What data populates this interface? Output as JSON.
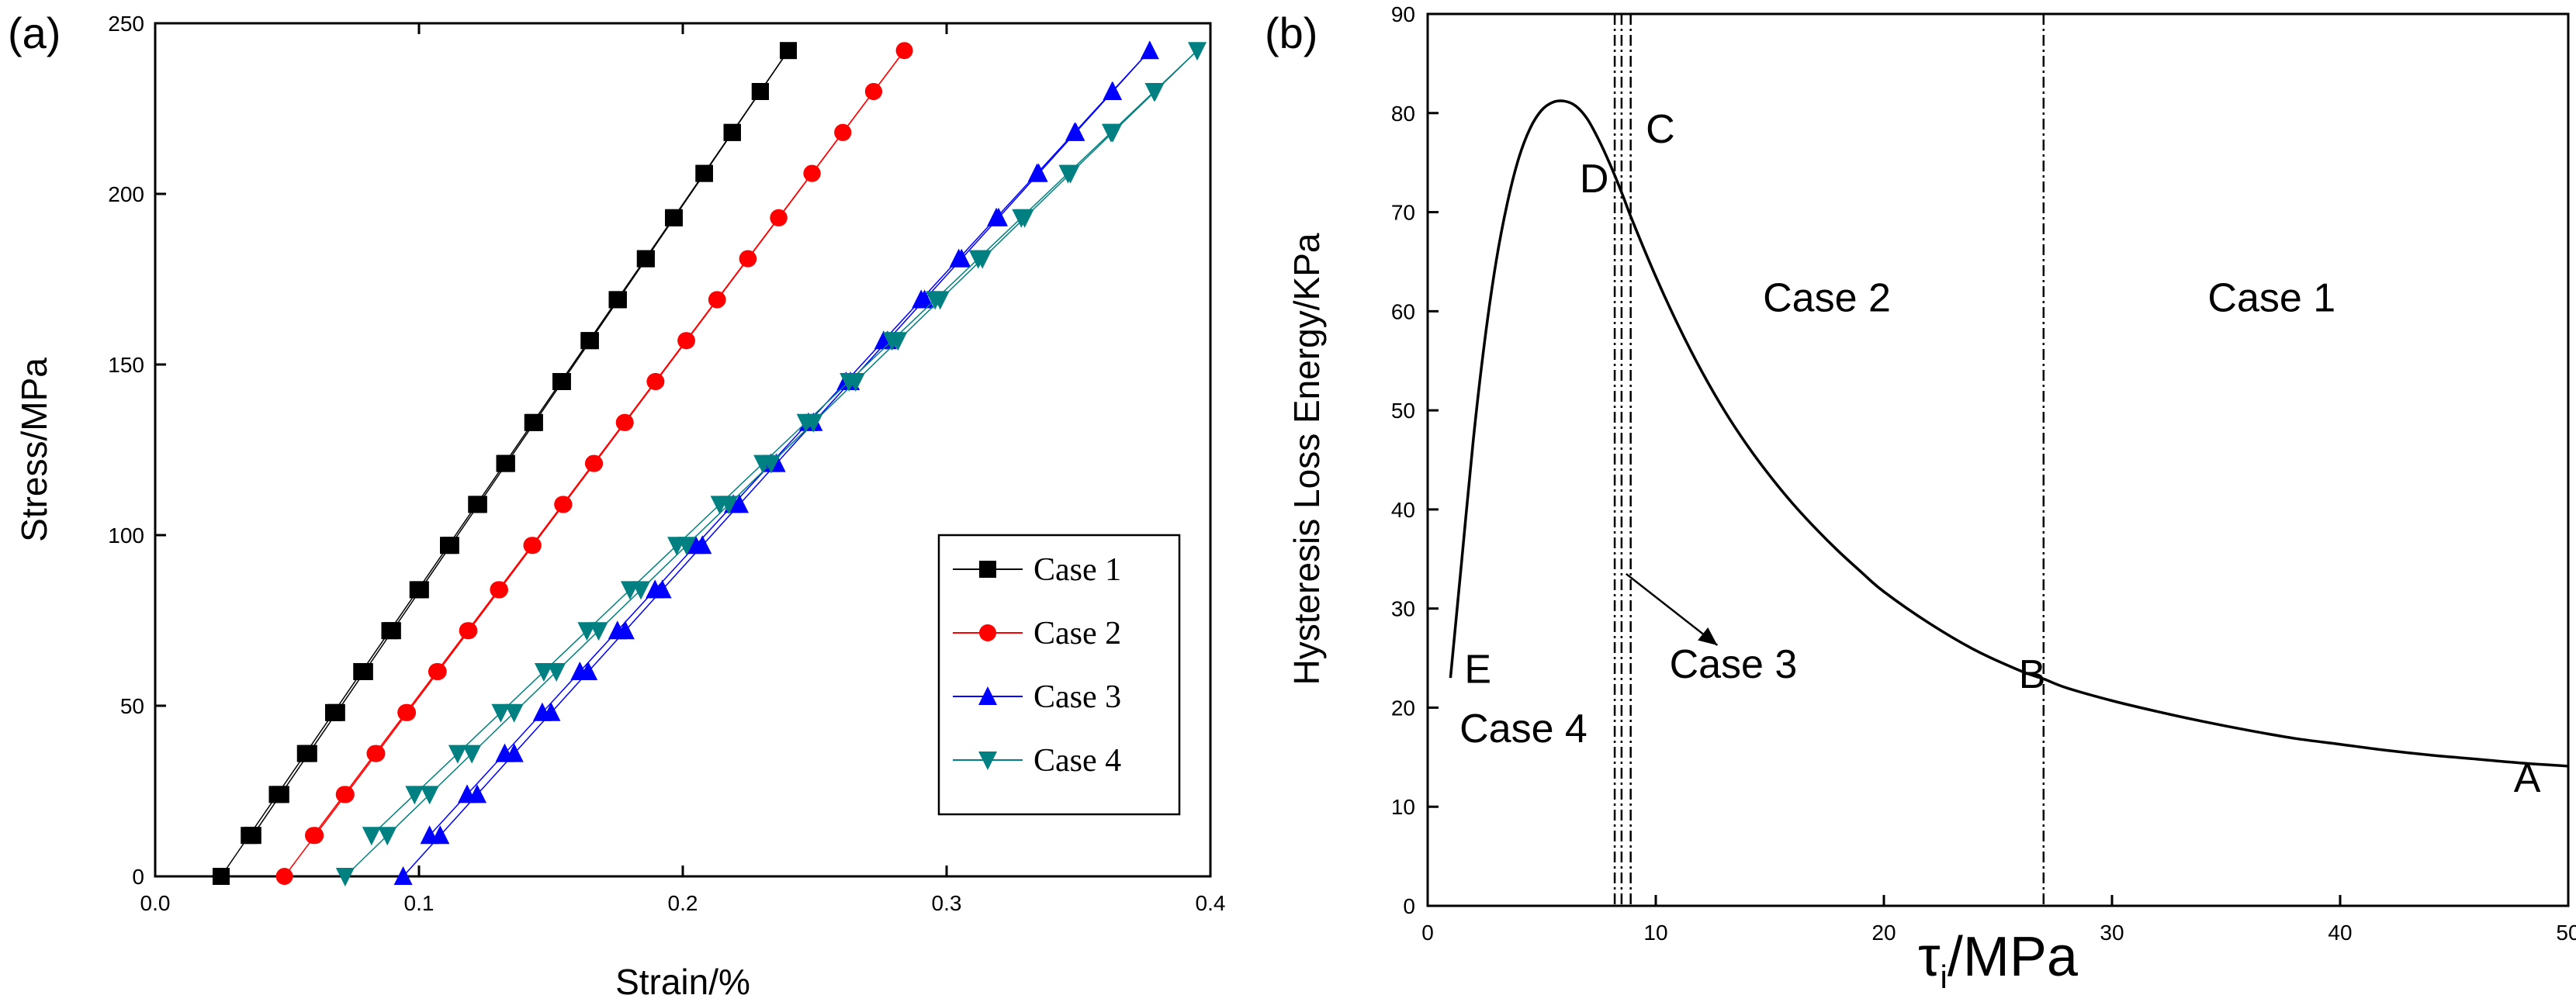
{
  "chart_data": [
    {
      "panel": "(a)",
      "type": "scatter",
      "xlabel": "Strain/%",
      "ylabel": "Stress/MPa",
      "xlim": [
        0.0,
        0.4
      ],
      "ylim": [
        0,
        250
      ],
      "xticks": [
        0.0,
        0.1,
        0.2,
        0.3,
        0.4
      ],
      "xtick_labels": [
        "0.0",
        "0.1",
        "0.2",
        "0.3",
        "0.4"
      ],
      "yticks": [
        0,
        50,
        100,
        150,
        200,
        250
      ],
      "ytick_labels": [
        "0",
        "50",
        "100",
        "150",
        "200",
        "250"
      ],
      "legend_position": "bottom-right",
      "series": [
        {
          "name": "Case 1",
          "marker": "square",
          "color": "#000000",
          "loading": {
            "start": [
              0.025,
              0
            ],
            "end": [
              0.24,
              242
            ]
          },
          "unloading": {
            "start": [
              0.24,
              242
            ],
            "end": [
              0.037,
              12
            ]
          },
          "stress_levels": [
            12,
            24,
            36,
            48,
            60,
            72,
            84,
            97,
            109,
            121,
            133,
            145,
            157,
            169,
            181,
            193,
            206,
            218,
            230,
            242
          ]
        },
        {
          "name": "Case 2",
          "marker": "circle",
          "color": "#ff0000",
          "loading": {
            "start": [
              0.049,
              0
            ],
            "end": [
              0.284,
              242
            ]
          },
          "unloading": {
            "start": [
              0.284,
              242
            ],
            "end": [
              0.06,
              12
            ]
          },
          "stress_levels": [
            12,
            24,
            36,
            48,
            60,
            72,
            84,
            97,
            109,
            121,
            133,
            145,
            157,
            169,
            181,
            193,
            206,
            218,
            230,
            242
          ]
        },
        {
          "name": "Case 3",
          "marker": "triangle-up",
          "color": "#0000ff",
          "loading": {
            "start": [
              0.094,
              0
            ],
            "end": [
              0.377,
              242
            ]
          },
          "unloading": {
            "start": [
              0.377,
              242
            ],
            "end": [
              0.104,
              12
            ]
          },
          "stress_levels": [
            12,
            24,
            36,
            48,
            60,
            72,
            84,
            97,
            109,
            121,
            133,
            145,
            157,
            169,
            181,
            193,
            206,
            218,
            230,
            242
          ]
        },
        {
          "name": "Case 4",
          "marker": "triangle-down",
          "color": "#008080",
          "loading": {
            "start": [
              0.072,
              0
            ],
            "end": [
              0.395,
              242
            ]
          },
          "unloading": {
            "start": [
              0.395,
              242
            ],
            "end": [
              0.082,
              12
            ]
          },
          "stress_levels": [
            12,
            24,
            36,
            48,
            60,
            72,
            84,
            97,
            109,
            121,
            133,
            145,
            157,
            169,
            181,
            193,
            206,
            218,
            230,
            242
          ]
        }
      ]
    },
    {
      "panel": "(b)",
      "type": "line",
      "xlabel_symbol": "τ",
      "xlabel_subscript": "i",
      "xlabel_unit": "/MPa",
      "ylabel": "Hysteresis Loss Energy/KPa",
      "xlim": [
        0,
        50
      ],
      "ylim": [
        0,
        90
      ],
      "xticks": [
        0,
        10,
        20,
        30,
        40,
        50
      ],
      "xtick_labels": [
        "0",
        "10",
        "20",
        "30",
        "40",
        "50"
      ],
      "yticks": [
        0,
        10,
        20,
        30,
        40,
        50,
        60,
        70,
        80,
        90
      ],
      "ytick_labels": [
        "0",
        "10",
        "20",
        "30",
        "40",
        "50",
        "60",
        "70",
        "80",
        "90"
      ],
      "series": [
        {
          "name": "Hysteresis loss energy",
          "x": [
            1.0,
            1.5,
            2.0,
            2.5,
            3.0,
            3.5,
            4.0,
            4.5,
            5.0,
            5.5,
            6.0,
            6.5,
            7.0,
            7.5,
            8.0,
            8.5,
            9.0,
            10,
            11,
            12,
            13,
            14,
            15,
            16,
            17,
            18,
            19,
            20,
            22,
            24,
            26,
            27,
            28,
            30,
            32,
            34,
            36,
            38,
            40,
            42,
            44,
            46,
            48,
            50
          ],
          "y": [
            23,
            35,
            47,
            57,
            65,
            71,
            75.5,
            78.5,
            80.3,
            81.1,
            81.2,
            80.7,
            79.4,
            77.3,
            74.8,
            72,
            69,
            63.5,
            58.5,
            54,
            50,
            46.5,
            43.4,
            40.6,
            38.1,
            35.8,
            33.7,
            31.7,
            28.5,
            25.8,
            23.7,
            22.9,
            22,
            20.7,
            19.6,
            18.6,
            17.7,
            16.9,
            16.3,
            15.7,
            15.2,
            14.8,
            14.4,
            14.1
          ]
        }
      ],
      "vertical_lines": [
        8.2,
        8.5,
        8.9,
        27.0
      ],
      "region_labels": [
        {
          "text": "Case 1",
          "x": 37,
          "y": 60
        },
        {
          "text": "Case 2",
          "x": 17.5,
          "y": 60
        },
        {
          "text": "Case 4",
          "x": 4.2,
          "y": 16.5
        }
      ],
      "point_labels": [
        {
          "text": "A",
          "x": 48.2,
          "y": 11.5
        },
        {
          "text": "B",
          "x": 26.5,
          "y": 22
        },
        {
          "text": "C",
          "x": 10.2,
          "y": 77
        },
        {
          "text": "D",
          "x": 7.3,
          "y": 72
        },
        {
          "text": "E",
          "x": 2.2,
          "y": 22.5
        }
      ],
      "arrow_annotation": {
        "text": "Case 3",
        "x": 13.4,
        "y": 23,
        "from": [
          8.7,
          33.5
        ],
        "to": [
          12.7,
          26.3
        ]
      }
    }
  ]
}
